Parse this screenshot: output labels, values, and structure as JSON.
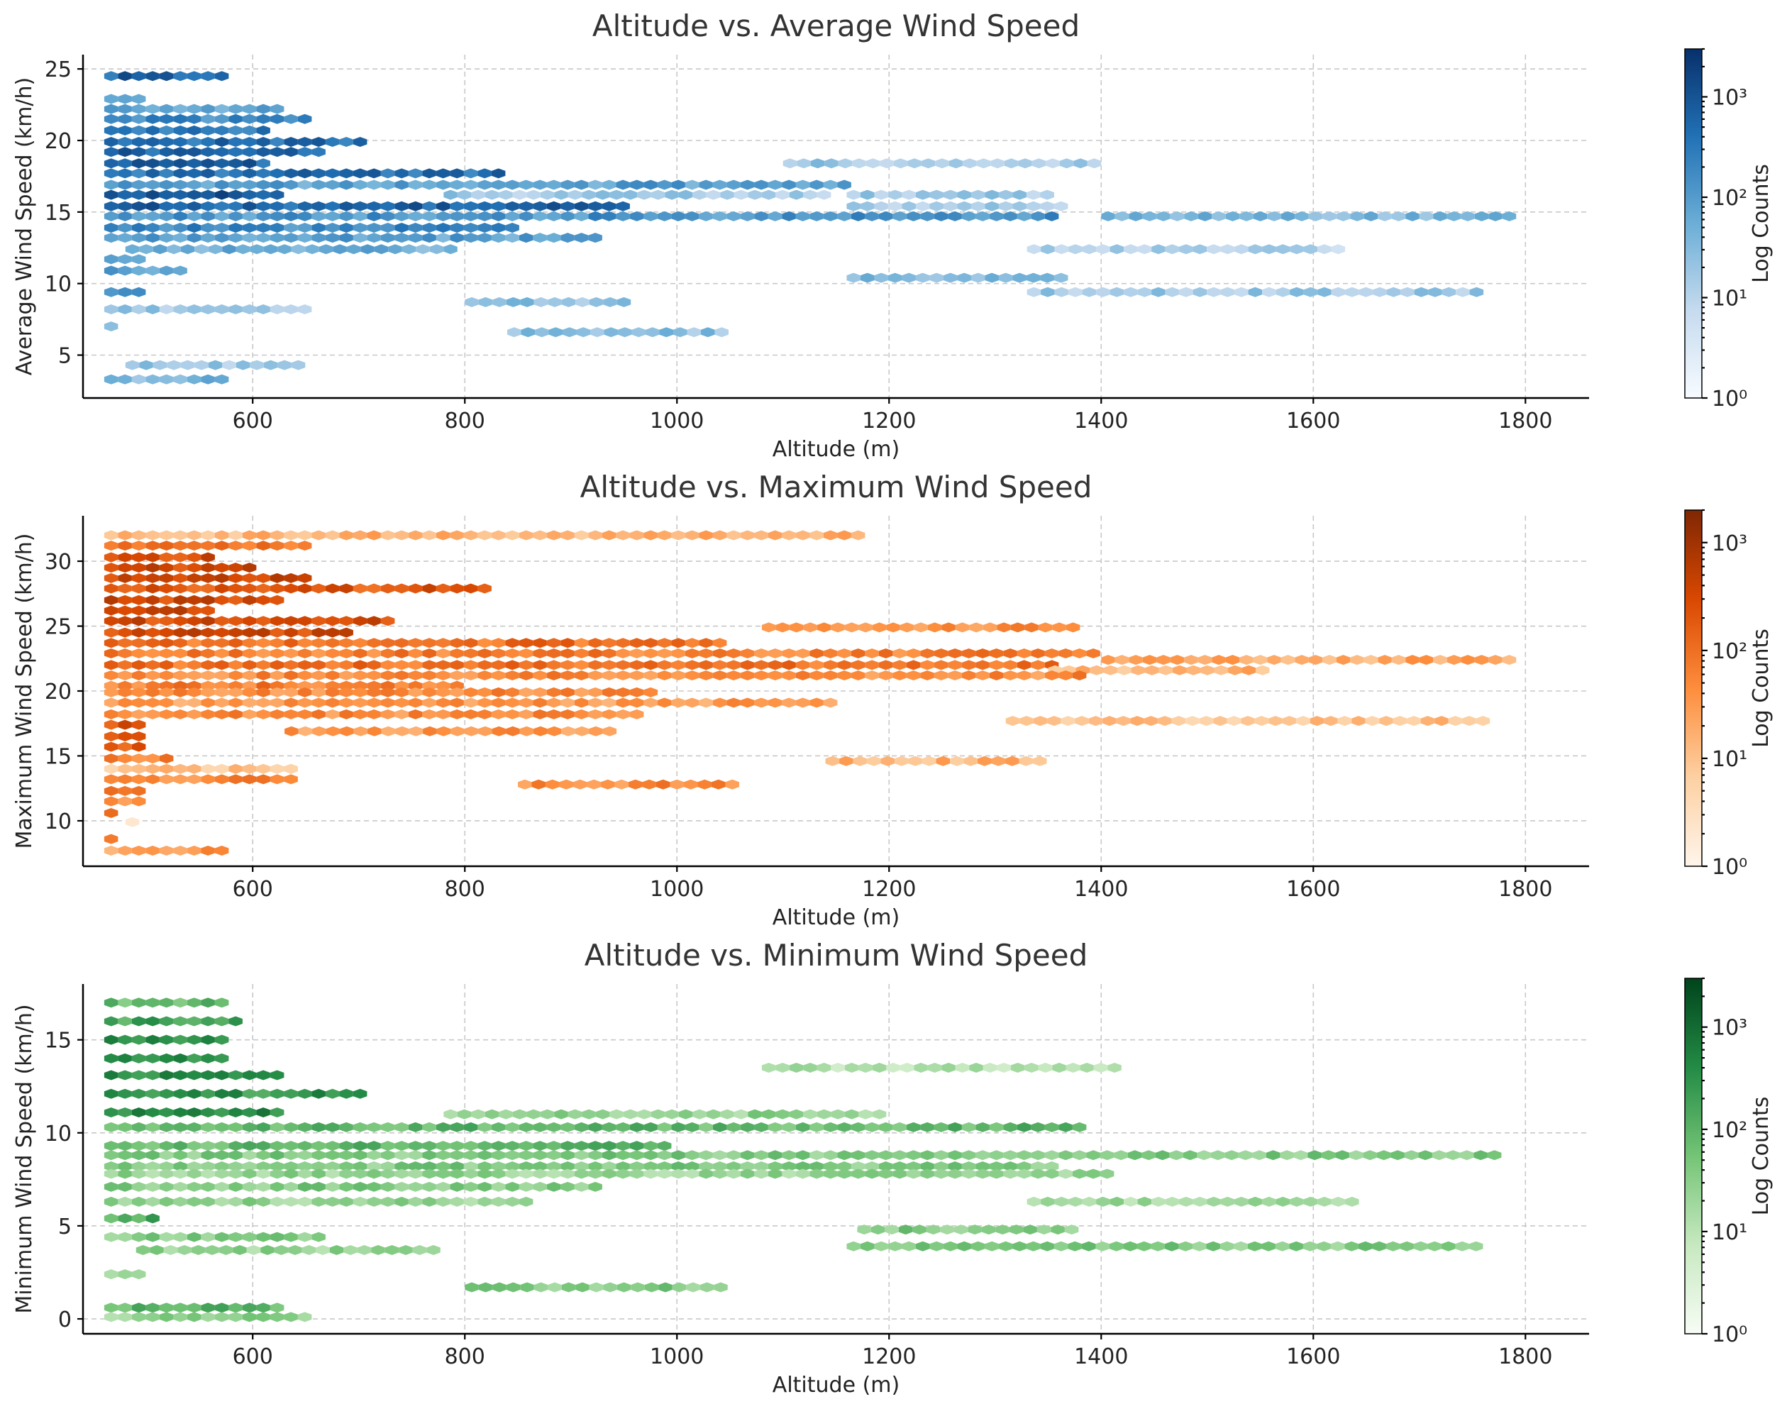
{
  "chart_data": [
    {
      "type": "hexbin",
      "title": "Altitude vs. Average Wind Speed",
      "xlabel": "Altitude (m)",
      "ylabel": "Average Wind Speed (km/h)",
      "xlim": [
        440,
        1860
      ],
      "ylim": [
        2,
        26
      ],
      "xticks": [
        600,
        800,
        1000,
        1200,
        1400,
        1600,
        1800
      ],
      "yticks": [
        5,
        10,
        15,
        20,
        25
      ],
      "colormap": "Blues",
      "colorbar": {
        "label": "Log Counts",
        "scale": "log",
        "min": 1,
        "max": 3000,
        "ticks": [
          "10^0",
          "10^1",
          "10^2",
          "10^3"
        ]
      },
      "bands": [
        {
          "y": 24.5,
          "x0": 460,
          "x1": 590,
          "level": 0.8
        },
        {
          "y": 22.9,
          "x0": 460,
          "x1": 500,
          "level": 0.6
        },
        {
          "y": 22.2,
          "x0": 460,
          "x1": 640,
          "level": 0.5
        },
        {
          "y": 21.5,
          "x0": 460,
          "x1": 660,
          "level": 0.65
        },
        {
          "y": 20.7,
          "x0": 460,
          "x1": 620,
          "level": 0.7
        },
        {
          "y": 19.9,
          "x0": 460,
          "x1": 720,
          "level": 0.75
        },
        {
          "y": 19.2,
          "x0": 460,
          "x1": 670,
          "level": 0.8
        },
        {
          "y": 18.4,
          "x0": 460,
          "x1": 620,
          "level": 0.8
        },
        {
          "y": 18.4,
          "x0": 1100,
          "x1": 1410,
          "level": 0.35
        },
        {
          "y": 17.7,
          "x0": 460,
          "x1": 840,
          "level": 0.75
        },
        {
          "y": 16.9,
          "x0": 460,
          "x1": 1170,
          "level": 0.55
        },
        {
          "y": 16.2,
          "x0": 460,
          "x1": 640,
          "level": 0.85
        },
        {
          "y": 16.2,
          "x0": 780,
          "x1": 1150,
          "level": 0.35
        },
        {
          "y": 16.2,
          "x0": 1160,
          "x1": 1360,
          "level": 0.35
        },
        {
          "y": 15.4,
          "x0": 460,
          "x1": 960,
          "level": 0.8
        },
        {
          "y": 15.4,
          "x0": 1160,
          "x1": 1380,
          "level": 0.35
        },
        {
          "y": 14.7,
          "x0": 460,
          "x1": 1360,
          "level": 0.6
        },
        {
          "y": 14.7,
          "x0": 1400,
          "x1": 1800,
          "level": 0.45
        },
        {
          "y": 13.9,
          "x0": 460,
          "x1": 860,
          "level": 0.65
        },
        {
          "y": 13.2,
          "x0": 460,
          "x1": 940,
          "level": 0.55
        },
        {
          "y": 12.4,
          "x0": 480,
          "x1": 800,
          "level": 0.5
        },
        {
          "y": 12.4,
          "x0": 1330,
          "x1": 1640,
          "level": 0.3
        },
        {
          "y": 11.7,
          "x0": 460,
          "x1": 500,
          "level": 0.6
        },
        {
          "y": 10.9,
          "x0": 460,
          "x1": 540,
          "level": 0.55
        },
        {
          "y": 10.4,
          "x0": 1160,
          "x1": 1380,
          "level": 0.45
        },
        {
          "y": 9.4,
          "x0": 460,
          "x1": 500,
          "level": 0.55
        },
        {
          "y": 9.4,
          "x0": 1330,
          "x1": 1770,
          "level": 0.35
        },
        {
          "y": 8.7,
          "x0": 800,
          "x1": 960,
          "level": 0.4
        },
        {
          "y": 8.2,
          "x0": 460,
          "x1": 660,
          "level": 0.35
        },
        {
          "y": 7.0,
          "x0": 460,
          "x1": 480,
          "level": 0.5
        },
        {
          "y": 6.6,
          "x0": 840,
          "x1": 1060,
          "level": 0.4
        },
        {
          "y": 4.3,
          "x0": 480,
          "x1": 650,
          "level": 0.35
        },
        {
          "y": 3.3,
          "x0": 460,
          "x1": 590,
          "level": 0.45
        }
      ]
    },
    {
      "type": "hexbin",
      "title": "Altitude vs. Maximum Wind Speed",
      "xlabel": "Altitude (m)",
      "ylabel": "Maximum Wind Speed (km/h)",
      "xlim": [
        440,
        1860
      ],
      "ylim": [
        6.5,
        33.5
      ],
      "xticks": [
        600,
        800,
        1000,
        1200,
        1400,
        1600,
        1800
      ],
      "yticks": [
        10,
        15,
        20,
        25,
        30
      ],
      "colormap": "Oranges",
      "colorbar": {
        "label": "Log Counts",
        "scale": "log",
        "min": 1,
        "max": 2000,
        "ticks": [
          "10^0",
          "10^1",
          "10^2",
          "10^3"
        ]
      },
      "bands": [
        {
          "y": 32.0,
          "x0": 460,
          "x1": 1190,
          "level": 0.35
        },
        {
          "y": 31.2,
          "x0": 460,
          "x1": 660,
          "level": 0.55
        },
        {
          "y": 30.3,
          "x0": 460,
          "x1": 570,
          "level": 0.75
        },
        {
          "y": 29.5,
          "x0": 460,
          "x1": 610,
          "level": 0.75
        },
        {
          "y": 28.7,
          "x0": 460,
          "x1": 660,
          "level": 0.75
        },
        {
          "y": 27.9,
          "x0": 460,
          "x1": 830,
          "level": 0.7
        },
        {
          "y": 27.0,
          "x0": 460,
          "x1": 640,
          "level": 0.75
        },
        {
          "y": 26.2,
          "x0": 460,
          "x1": 570,
          "level": 0.8
        },
        {
          "y": 25.4,
          "x0": 460,
          "x1": 740,
          "level": 0.75
        },
        {
          "y": 24.9,
          "x0": 1080,
          "x1": 1390,
          "level": 0.5
        },
        {
          "y": 24.5,
          "x0": 460,
          "x1": 700,
          "level": 0.75
        },
        {
          "y": 23.7,
          "x0": 460,
          "x1": 1050,
          "level": 0.6
        },
        {
          "y": 22.9,
          "x0": 460,
          "x1": 1400,
          "level": 0.55
        },
        {
          "y": 22.4,
          "x0": 1400,
          "x1": 1800,
          "level": 0.4
        },
        {
          "y": 22.0,
          "x0": 460,
          "x1": 1370,
          "level": 0.6
        },
        {
          "y": 21.6,
          "x0": 1350,
          "x1": 1560,
          "level": 0.35
        },
        {
          "y": 21.2,
          "x0": 460,
          "x1": 1390,
          "level": 0.5
        },
        {
          "y": 20.4,
          "x0": 460,
          "x1": 800,
          "level": 0.55
        },
        {
          "y": 19.9,
          "x0": 460,
          "x1": 990,
          "level": 0.5
        },
        {
          "y": 19.1,
          "x0": 460,
          "x1": 1160,
          "level": 0.45
        },
        {
          "y": 18.2,
          "x0": 460,
          "x1": 980,
          "level": 0.5
        },
        {
          "y": 17.7,
          "x0": 1310,
          "x1": 1770,
          "level": 0.3
        },
        {
          "y": 17.4,
          "x0": 460,
          "x1": 500,
          "level": 0.7
        },
        {
          "y": 16.9,
          "x0": 630,
          "x1": 950,
          "level": 0.45
        },
        {
          "y": 16.5,
          "x0": 460,
          "x1": 500,
          "level": 0.7
        },
        {
          "y": 15.7,
          "x0": 460,
          "x1": 500,
          "level": 0.7
        },
        {
          "y": 14.8,
          "x0": 460,
          "x1": 530,
          "level": 0.55
        },
        {
          "y": 14.6,
          "x0": 1140,
          "x1": 1350,
          "level": 0.35
        },
        {
          "y": 14.0,
          "x0": 460,
          "x1": 650,
          "level": 0.3
        },
        {
          "y": 13.2,
          "x0": 460,
          "x1": 650,
          "level": 0.5
        },
        {
          "y": 12.8,
          "x0": 850,
          "x1": 1060,
          "level": 0.5
        },
        {
          "y": 12.3,
          "x0": 460,
          "x1": 500,
          "level": 0.6
        },
        {
          "y": 11.5,
          "x0": 460,
          "x1": 500,
          "level": 0.45
        },
        {
          "y": 10.6,
          "x0": 460,
          "x1": 480,
          "level": 0.55
        },
        {
          "y": 9.9,
          "x0": 480,
          "x1": 500,
          "level": 0.15
        },
        {
          "y": 8.6,
          "x0": 460,
          "x1": 480,
          "level": 0.5
        },
        {
          "y": 7.7,
          "x0": 460,
          "x1": 590,
          "level": 0.45
        }
      ]
    },
    {
      "type": "hexbin",
      "title": "Altitude vs. Minimum Wind Speed",
      "xlabel": "Altitude (m)",
      "ylabel": "Minimum Wind Speed (km/h)",
      "xlim": [
        440,
        1860
      ],
      "ylim": [
        -0.8,
        18
      ],
      "xticks": [
        600,
        800,
        1000,
        1200,
        1400,
        1600,
        1800
      ],
      "yticks": [
        0,
        5,
        10,
        15
      ],
      "colormap": "Greens",
      "colorbar": {
        "label": "Log Counts",
        "scale": "log",
        "min": 1,
        "max": 3000,
        "ticks": [
          "10^0",
          "10^1",
          "10^2",
          "10^3"
        ]
      },
      "bands": [
        {
          "y": 17.0,
          "x0": 460,
          "x1": 590,
          "level": 0.55
        },
        {
          "y": 16.0,
          "x0": 460,
          "x1": 600,
          "level": 0.65
        },
        {
          "y": 15.0,
          "x0": 460,
          "x1": 590,
          "level": 0.7
        },
        {
          "y": 14.0,
          "x0": 460,
          "x1": 580,
          "level": 0.7
        },
        {
          "y": 13.5,
          "x0": 1080,
          "x1": 1420,
          "level": 0.3
        },
        {
          "y": 13.1,
          "x0": 460,
          "x1": 640,
          "level": 0.7
        },
        {
          "y": 12.1,
          "x0": 460,
          "x1": 710,
          "level": 0.7
        },
        {
          "y": 11.1,
          "x0": 460,
          "x1": 640,
          "level": 0.75
        },
        {
          "y": 11.0,
          "x0": 780,
          "x1": 1200,
          "level": 0.4
        },
        {
          "y": 10.3,
          "x0": 460,
          "x1": 1390,
          "level": 0.55
        },
        {
          "y": 9.3,
          "x0": 460,
          "x1": 1000,
          "level": 0.55
        },
        {
          "y": 8.8,
          "x0": 460,
          "x1": 1780,
          "level": 0.45
        },
        {
          "y": 8.2,
          "x0": 460,
          "x1": 1370,
          "level": 0.45
        },
        {
          "y": 7.8,
          "x0": 460,
          "x1": 1420,
          "level": 0.4
        },
        {
          "y": 7.1,
          "x0": 460,
          "x1": 940,
          "level": 0.45
        },
        {
          "y": 6.3,
          "x0": 460,
          "x1": 870,
          "level": 0.4
        },
        {
          "y": 6.3,
          "x0": 1330,
          "x1": 1650,
          "level": 0.35
        },
        {
          "y": 5.4,
          "x0": 460,
          "x1": 520,
          "level": 0.6
        },
        {
          "y": 4.8,
          "x0": 1170,
          "x1": 1380,
          "level": 0.45
        },
        {
          "y": 4.4,
          "x0": 460,
          "x1": 680,
          "level": 0.45
        },
        {
          "y": 3.9,
          "x0": 1160,
          "x1": 1760,
          "level": 0.45
        },
        {
          "y": 3.7,
          "x0": 490,
          "x1": 780,
          "level": 0.4
        },
        {
          "y": 2.4,
          "x0": 460,
          "x1": 500,
          "level": 0.3
        },
        {
          "y": 1.7,
          "x0": 800,
          "x1": 1060,
          "level": 0.45
        },
        {
          "y": 0.6,
          "x0": 460,
          "x1": 640,
          "level": 0.55
        },
        {
          "y": 0.1,
          "x0": 460,
          "x1": 660,
          "level": 0.4
        }
      ]
    }
  ]
}
